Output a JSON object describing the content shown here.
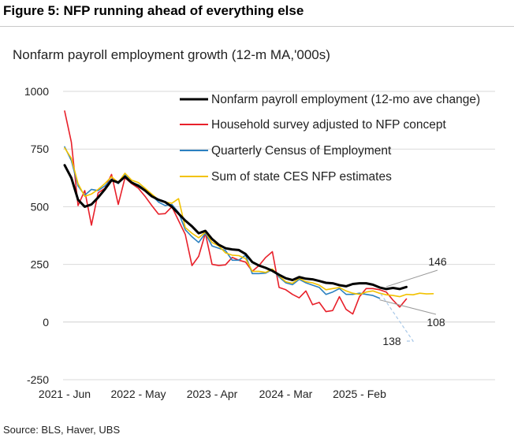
{
  "figure": {
    "title": "Figure 5: NFP running ahead of everything else",
    "source": "Source: BLS, Haver, UBS"
  },
  "chart_data": {
    "type": "line",
    "title": "Nonfarm payroll employment growth (12-m MA,'000s)",
    "xlabel": "",
    "ylabel": "",
    "ylim": [
      -250,
      1000
    ],
    "yticks": [
      1000,
      750,
      500,
      250,
      0,
      -250
    ],
    "x_tick_labels": [
      "2021 - Jun",
      "2022 - May",
      "2023 - Apr",
      "2024 - Mar",
      "2025 - Feb"
    ],
    "x_tick_index": [
      0,
      11,
      22,
      33,
      44
    ],
    "grid": true,
    "legend": "top-right",
    "series": [
      {
        "name": "Nonfarm payroll employment (12-mo ave change)",
        "color": "#000000",
        "values": [
          680,
          625,
          530,
          500,
          510,
          540,
          575,
          615,
          605,
          630,
          605,
          590,
          570,
          545,
          530,
          520,
          500,
          470,
          440,
          415,
          385,
          395,
          360,
          335,
          320,
          315,
          312,
          295,
          260,
          245,
          235,
          222,
          205,
          190,
          182,
          195,
          188,
          185,
          178,
          170,
          168,
          160,
          155,
          165,
          168,
          168,
          162,
          150,
          143,
          148,
          143,
          152
        ]
      },
      {
        "name": "Household survey adjusted to NFP concept",
        "color": "#e8202a",
        "values": [
          915,
          780,
          505,
          570,
          420,
          560,
          580,
          640,
          510,
          625,
          600,
          580,
          545,
          505,
          468,
          470,
          500,
          440,
          380,
          245,
          285,
          385,
          250,
          245,
          248,
          280,
          268,
          260,
          220,
          245,
          280,
          305,
          150,
          140,
          120,
          105,
          135,
          75,
          85,
          45,
          50,
          110,
          55,
          35,
          110,
          145,
          145,
          140,
          130,
          95,
          65,
          100
        ]
      },
      {
        "name": "Quarterly Census of Employment",
        "color": "#2b80c0",
        "values": [
          760,
          700,
          590,
          550,
          575,
          570,
          590,
          620,
          600,
          640,
          605,
          595,
          575,
          550,
          520,
          505,
          510,
          475,
          400,
          370,
          345,
          385,
          330,
          320,
          310,
          268,
          268,
          290,
          210,
          210,
          212,
          228,
          195,
          170,
          162,
          185,
          170,
          160,
          150,
          120,
          130,
          145,
          120,
          120,
          125,
          120,
          115,
          103
        ]
      },
      {
        "name": "Sum of state CES NFP estimates",
        "color": "#f2c200",
        "values": [
          755,
          710,
          600,
          545,
          555,
          575,
          600,
          630,
          605,
          645,
          615,
          605,
          580,
          555,
          530,
          520,
          515,
          535,
          410,
          385,
          365,
          390,
          345,
          330,
          300,
          290,
          288,
          275,
          220,
          220,
          215,
          230,
          200,
          175,
          168,
          190,
          175,
          170,
          160,
          140,
          145,
          150,
          135,
          125,
          120,
          130,
          135,
          125,
          118,
          115,
          110,
          120,
          118,
          125,
          122,
          123
        ]
      }
    ],
    "annotations": [
      {
        "label": "146",
        "value": 146,
        "series": 0
      },
      {
        "label": "108",
        "value": 108,
        "series": 2
      },
      {
        "label": "138",
        "value": 138,
        "series": 1
      }
    ]
  }
}
